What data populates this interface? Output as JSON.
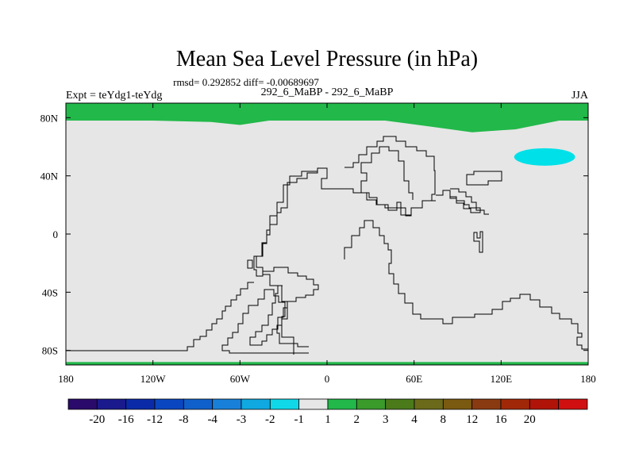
{
  "chart_data": {
    "type": "map",
    "title": "Mean Sea Level Pressure (in hPa)",
    "stats_line": "rmsd= 0.292852 diff= -0.00689697",
    "left_label": "Expt = teYdg1-teYdg",
    "center_label": "292_6_MaBP - 292_6_MaBP",
    "right_label": "JJA",
    "x_ticks": [
      {
        "value": -180,
        "label": "180"
      },
      {
        "value": -120,
        "label": "120W"
      },
      {
        "value": -60,
        "label": "60W"
      },
      {
        "value": 0,
        "label": "0"
      },
      {
        "value": 60,
        "label": "60E"
      },
      {
        "value": 120,
        "label": "120E"
      },
      {
        "value": 180,
        "label": "180"
      }
    ],
    "y_ticks": [
      {
        "value": 80,
        "label": "80N"
      },
      {
        "value": 40,
        "label": "40N"
      },
      {
        "value": 0,
        "label": "0"
      },
      {
        "value": -40,
        "label": "40S"
      },
      {
        "value": -80,
        "label": "80S"
      }
    ],
    "xlim": [
      -180,
      180
    ],
    "ylim": [
      -90,
      90
    ],
    "background_field_color": "#e6e6e6",
    "fields": [
      {
        "name": "north-polar-band",
        "bin": "1 to 2",
        "color": "#22b84a",
        "note": "positive anomaly along northern boundary, dipping to about 70N near 100E",
        "lower_edge": [
          [
            -180,
            78
          ],
          [
            -120,
            78
          ],
          [
            -80,
            77
          ],
          [
            -60,
            75
          ],
          [
            -40,
            78
          ],
          [
            0,
            78
          ],
          [
            40,
            78
          ],
          [
            70,
            74
          ],
          [
            100,
            70
          ],
          [
            130,
            72
          ],
          [
            160,
            78
          ],
          [
            180,
            78
          ]
        ]
      },
      {
        "name": "south-polar-band",
        "bin": "1 to 2",
        "color": "#22b84a",
        "lat_range": [
          -90,
          -88
        ]
      },
      {
        "name": "north-pacific-low",
        "bin": "-2 to -1",
        "color": "#00e0e8",
        "center": [
          150,
          53
        ],
        "lon_radius": 21,
        "lat_radius": 6
      }
    ],
    "colorbar": {
      "colors": [
        "#2a0a6a",
        "#1a1a8c",
        "#0a2aa8",
        "#0a46c0",
        "#1060cc",
        "#1880d8",
        "#10a8e0",
        "#10d8e8",
        "#e6e6e6",
        "#22b84a",
        "#3a9a2a",
        "#4a7a1a",
        "#6a6a1a",
        "#7a5a10",
        "#8a3a10",
        "#a02808",
        "#b01408",
        "#d01010"
      ],
      "labels": [
        "-20",
        "-16",
        "-12",
        "-8",
        "-4",
        "-3",
        "-2",
        "-1",
        "1",
        "2",
        "3",
        "4",
        "8",
        "12",
        "16",
        "20"
      ]
    }
  }
}
